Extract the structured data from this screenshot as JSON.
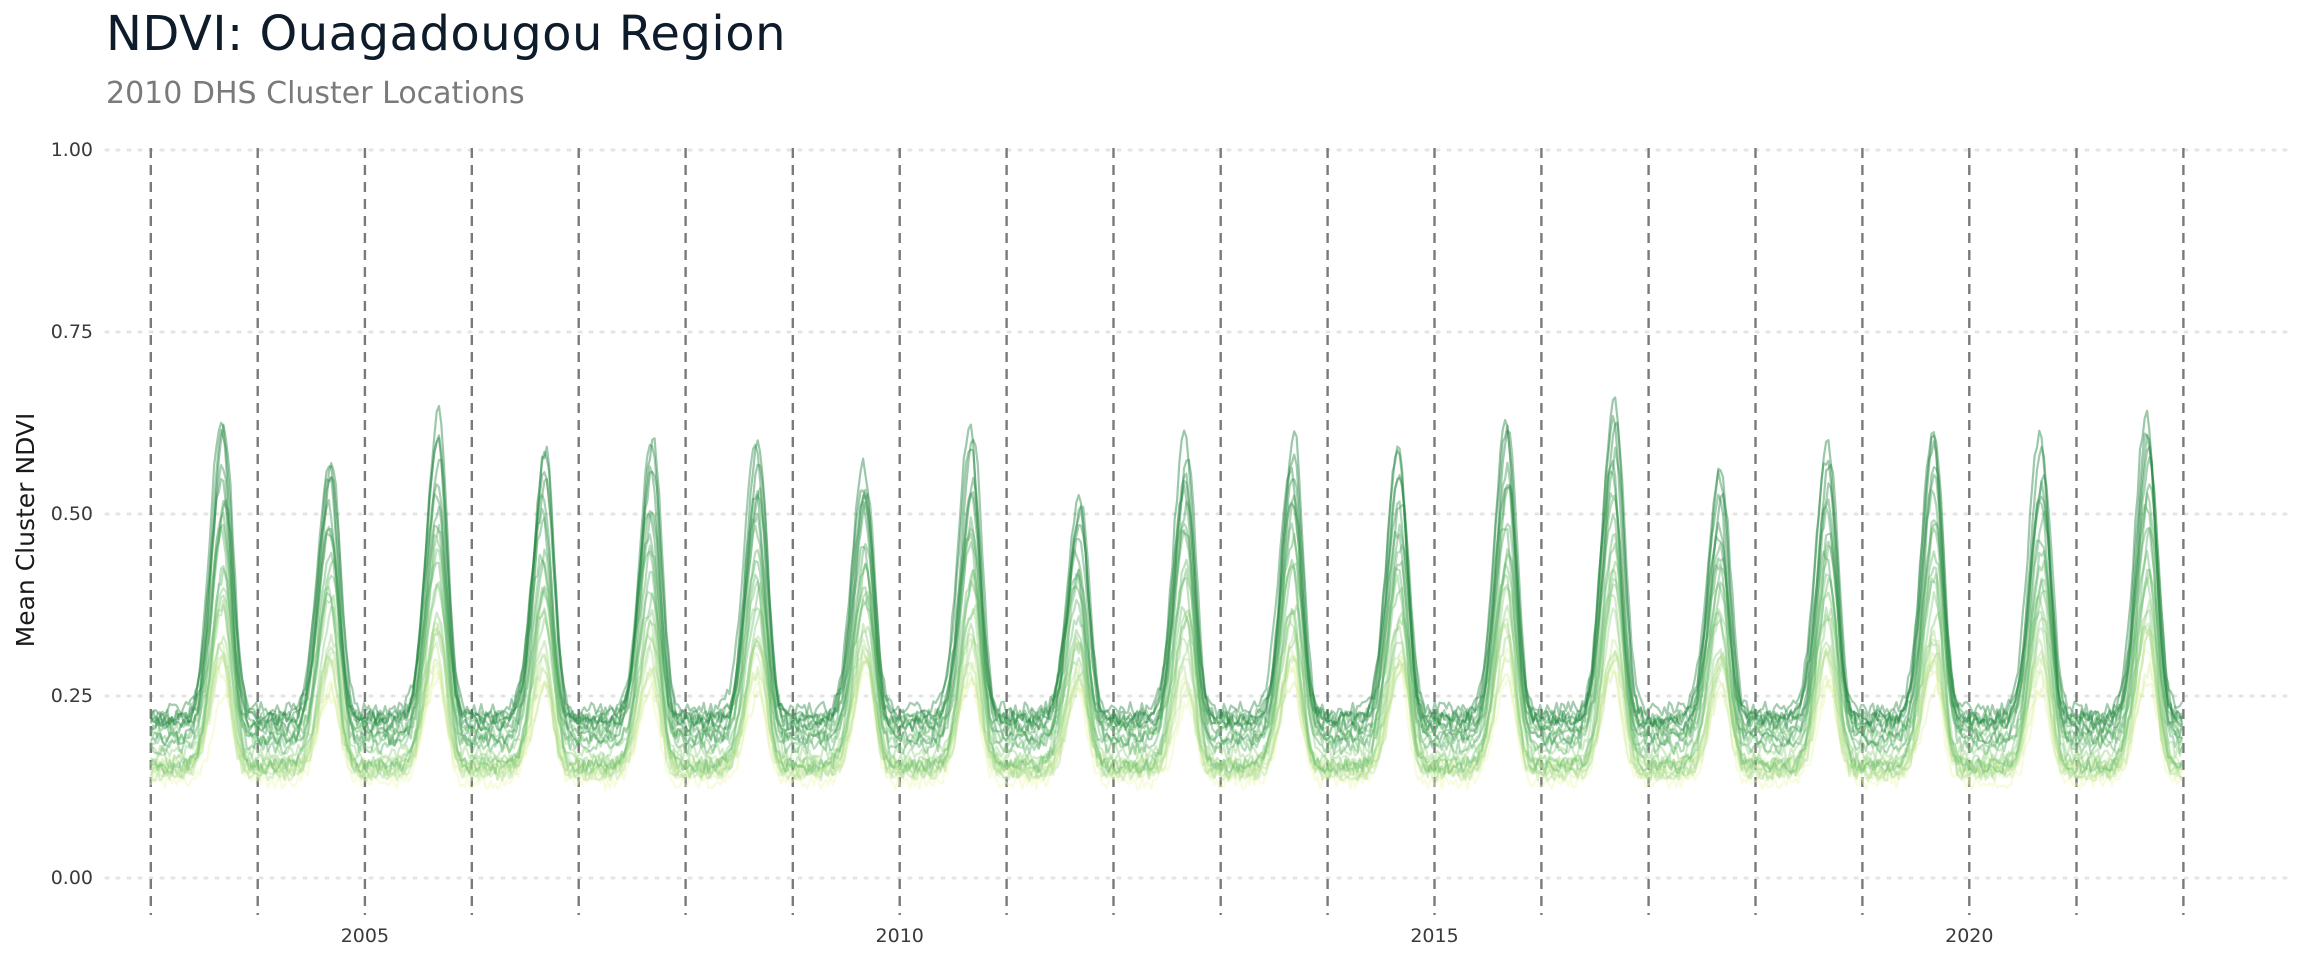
{
  "chart_data": {
    "type": "line",
    "title": "NDVI: Ouagadougou Region",
    "subtitle": "2010 DHS Cluster Locations",
    "xlabel": "",
    "ylabel": "Mean Cluster NDVI",
    "xlim": [
      "2002-08-01",
      "2022-12-31"
    ],
    "ylim": [
      0,
      1
    ],
    "y_ticks": [
      {
        "value": 0.0,
        "label": "0.00"
      },
      {
        "value": 0.25,
        "label": "0.25"
      },
      {
        "value": 0.5,
        "label": "0.50"
      },
      {
        "value": 0.75,
        "label": "0.75"
      },
      {
        "value": 1.0,
        "label": "1.00"
      }
    ],
    "x_ticks": [
      {
        "date": "2005-01-01",
        "label": "2005"
      },
      {
        "date": "2010-01-01",
        "label": "2010"
      },
      {
        "date": "2015-01-01",
        "label": "2015"
      },
      {
        "date": "2020-01-01",
        "label": "2020"
      }
    ],
    "vlines": [
      "2003-01-01",
      "2004-01-01",
      "2005-01-01",
      "2006-01-01",
      "2007-01-01",
      "2008-01-01",
      "2009-01-01",
      "2010-01-01",
      "2011-01-01",
      "2012-01-01",
      "2013-01-01",
      "2014-01-01",
      "2015-01-01",
      "2016-01-01",
      "2017-01-01",
      "2018-01-01",
      "2019-01-01",
      "2020-01-01",
      "2021-01-01",
      "2022-01-01"
    ],
    "grid": "horizontal dotted",
    "legend": "none",
    "color_scale": [
      "#edf8b1",
      "#78c679",
      "#238443"
    ],
    "seasonal_peaks": [
      {
        "date": "2003-09-05",
        "upper": 0.63,
        "lower": 0.28
      },
      {
        "date": "2004-09-05",
        "upper": 0.6,
        "lower": 0.26
      },
      {
        "date": "2005-09-05",
        "upper": 0.64,
        "lower": 0.28
      },
      {
        "date": "2006-09-05",
        "upper": 0.59,
        "lower": 0.27
      },
      {
        "date": "2007-09-05",
        "upper": 0.6,
        "lower": 0.27
      },
      {
        "date": "2008-09-05",
        "upper": 0.61,
        "lower": 0.27
      },
      {
        "date": "2009-09-05",
        "upper": 0.58,
        "lower": 0.28
      },
      {
        "date": "2010-09-05",
        "upper": 0.62,
        "lower": 0.27
      },
      {
        "date": "2011-09-05",
        "upper": 0.53,
        "lower": 0.25
      },
      {
        "date": "2012-09-05",
        "upper": 0.61,
        "lower": 0.26
      },
      {
        "date": "2013-09-05",
        "upper": 0.61,
        "lower": 0.27
      },
      {
        "date": "2014-09-05",
        "upper": 0.6,
        "lower": 0.27
      },
      {
        "date": "2015-09-05",
        "upper": 0.63,
        "lower": 0.29
      },
      {
        "date": "2016-09-05",
        "upper": 0.66,
        "lower": 0.28
      },
      {
        "date": "2017-09-05",
        "upper": 0.57,
        "lower": 0.26
      },
      {
        "date": "2018-09-05",
        "upper": 0.6,
        "lower": 0.27
      },
      {
        "date": "2019-09-05",
        "upper": 0.61,
        "lower": 0.27
      },
      {
        "date": "2020-09-05",
        "upper": 0.61,
        "lower": 0.27
      },
      {
        "date": "2021-09-05",
        "upper": 0.64,
        "lower": 0.29
      }
    ],
    "dry_season_range": [
      0.13,
      0.24
    ],
    "series_count": 24
  }
}
